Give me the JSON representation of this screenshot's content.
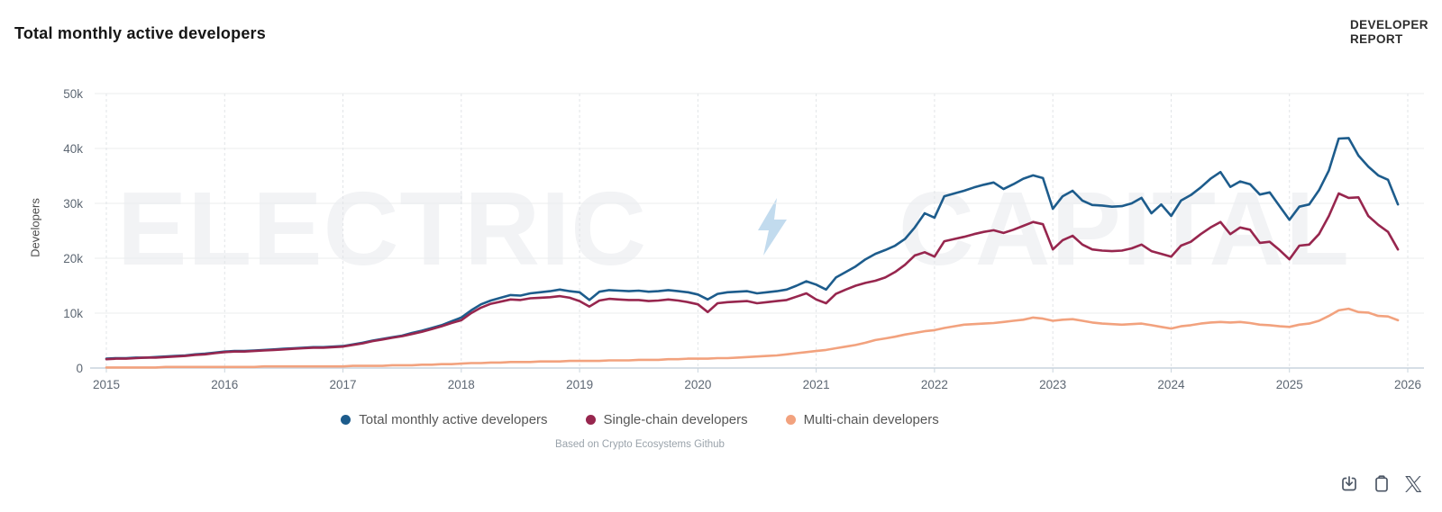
{
  "header": {
    "title": "Total monthly active developers",
    "brand_line1": "DEVELOPER",
    "brand_line2": "REPORT"
  },
  "watermark": {
    "left": "ELECTRIC",
    "right": "CAPITAL",
    "bolt_icon": "lightning-bolt-icon",
    "bolt_color": "#c2dbee"
  },
  "footer": {
    "caption": "Based on Crypto Ecosystems Github"
  },
  "toolbar": {
    "icons": [
      "download-icon",
      "copy-icon",
      "x-icon"
    ],
    "icon_color": "#4d5766"
  },
  "chart_data": {
    "type": "line",
    "title": "Total monthly active developers",
    "xlabel": "",
    "ylabel": "Developers",
    "x_start_year": 2015,
    "points_per_year": 12,
    "x_ticks": [
      2015,
      2016,
      2017,
      2018,
      2019,
      2020,
      2021,
      2022,
      2023,
      2024,
      2025,
      2026
    ],
    "y_ticks_k": [
      0,
      10,
      20,
      30,
      40,
      50
    ],
    "y_tick_labels": [
      "0",
      "10k",
      "20k",
      "30k",
      "40k",
      "50k"
    ],
    "y_max_k": 50,
    "ylim": [
      0,
      50000
    ],
    "unit": "developers (values in thousands)",
    "grid": "horizontal solid, vertical dashed per year",
    "legend_position": "bottom center",
    "series": [
      {
        "name": "Total monthly active developers",
        "color": "#1d5c8c",
        "values_k": [
          1.7,
          1.8,
          1.8,
          1.9,
          1.9,
          2.0,
          2.1,
          2.2,
          2.3,
          2.5,
          2.6,
          2.8,
          3.0,
          3.1,
          3.1,
          3.2,
          3.3,
          3.4,
          3.5,
          3.6,
          3.7,
          3.8,
          3.8,
          3.9,
          4.0,
          4.3,
          4.6,
          5.0,
          5.3,
          5.6,
          5.9,
          6.4,
          6.8,
          7.3,
          7.8,
          8.5,
          9.2,
          10.5,
          11.6,
          12.3,
          12.8,
          13.3,
          13.2,
          13.6,
          13.8,
          14.0,
          14.3,
          14.0,
          13.8,
          12.4,
          13.9,
          14.2,
          14.1,
          14.0,
          14.1,
          13.9,
          14.0,
          14.2,
          14.0,
          13.8,
          13.4,
          12.5,
          13.5,
          13.8,
          13.9,
          14.0,
          13.6,
          13.8,
          14.0,
          14.3,
          15.0,
          15.8,
          15.2,
          14.3,
          16.5,
          17.5,
          18.5,
          19.8,
          20.8,
          21.5,
          22.3,
          23.5,
          25.6,
          28.2,
          27.4,
          31.3,
          31.8,
          32.3,
          32.9,
          33.4,
          33.8,
          32.6,
          33.5,
          34.5,
          35.1,
          34.6,
          29.0,
          31.3,
          32.3,
          30.5,
          29.7,
          29.6,
          29.4,
          29.5,
          30.0,
          31.0,
          28.2,
          29.8,
          27.7,
          30.5,
          31.5,
          32.9,
          34.5,
          35.7,
          33.0,
          34.0,
          33.5,
          31.6,
          32.0,
          29.5,
          27.0,
          29.4,
          29.8,
          32.4,
          36.0,
          41.8,
          41.9,
          38.7,
          36.7,
          35.1,
          34.3,
          29.8
        ]
      },
      {
        "name": "Single-chain developers",
        "color": "#97264e",
        "values_k": [
          1.6,
          1.7,
          1.7,
          1.8,
          1.9,
          1.9,
          2.0,
          2.1,
          2.2,
          2.4,
          2.5,
          2.7,
          2.9,
          3.0,
          3.0,
          3.1,
          3.2,
          3.3,
          3.4,
          3.5,
          3.6,
          3.7,
          3.7,
          3.8,
          3.9,
          4.2,
          4.5,
          4.9,
          5.2,
          5.5,
          5.8,
          6.2,
          6.6,
          7.1,
          7.6,
          8.2,
          8.7,
          10.0,
          11.0,
          11.7,
          12.1,
          12.5,
          12.4,
          12.7,
          12.8,
          12.9,
          13.1,
          12.8,
          12.2,
          11.2,
          12.3,
          12.6,
          12.5,
          12.4,
          12.4,
          12.2,
          12.3,
          12.5,
          12.3,
          12.0,
          11.6,
          10.2,
          11.8,
          12.0,
          12.1,
          12.2,
          11.8,
          12.0,
          12.2,
          12.4,
          13.0,
          13.6,
          12.5,
          11.8,
          13.5,
          14.3,
          15.0,
          15.5,
          15.9,
          16.5,
          17.5,
          18.8,
          20.5,
          21.1,
          20.3,
          23.1,
          23.5,
          23.9,
          24.4,
          24.8,
          25.1,
          24.6,
          25.2,
          25.9,
          26.6,
          26.2,
          21.6,
          23.3,
          24.1,
          22.5,
          21.6,
          21.4,
          21.3,
          21.4,
          21.8,
          22.5,
          21.3,
          20.8,
          20.3,
          22.3,
          23.0,
          24.4,
          25.6,
          26.6,
          24.4,
          25.6,
          25.2,
          22.8,
          23.0,
          21.5,
          19.8,
          22.3,
          22.5,
          24.4,
          27.7,
          31.8,
          31.0,
          31.1,
          27.7,
          26.1,
          24.8,
          21.6
        ]
      },
      {
        "name": "Multi-chain developers",
        "color": "#f2a27e",
        "values_k": [
          0.1,
          0.1,
          0.1,
          0.1,
          0.1,
          0.1,
          0.2,
          0.2,
          0.2,
          0.2,
          0.2,
          0.2,
          0.2,
          0.2,
          0.2,
          0.2,
          0.3,
          0.3,
          0.3,
          0.3,
          0.3,
          0.3,
          0.3,
          0.3,
          0.3,
          0.4,
          0.4,
          0.4,
          0.4,
          0.5,
          0.5,
          0.5,
          0.6,
          0.6,
          0.7,
          0.7,
          0.8,
          0.9,
          0.9,
          1.0,
          1.0,
          1.1,
          1.1,
          1.1,
          1.2,
          1.2,
          1.2,
          1.3,
          1.3,
          1.3,
          1.3,
          1.4,
          1.4,
          1.4,
          1.5,
          1.5,
          1.5,
          1.6,
          1.6,
          1.7,
          1.7,
          1.7,
          1.8,
          1.8,
          1.9,
          2.0,
          2.1,
          2.2,
          2.3,
          2.5,
          2.7,
          2.9,
          3.1,
          3.3,
          3.6,
          3.9,
          4.2,
          4.6,
          5.1,
          5.4,
          5.7,
          6.1,
          6.4,
          6.7,
          6.9,
          7.3,
          7.6,
          7.9,
          8.0,
          8.1,
          8.2,
          8.4,
          8.6,
          8.8,
          9.2,
          9.0,
          8.6,
          8.8,
          8.9,
          8.6,
          8.3,
          8.1,
          8.0,
          7.9,
          8.0,
          8.1,
          7.8,
          7.5,
          7.2,
          7.6,
          7.8,
          8.1,
          8.3,
          8.4,
          8.3,
          8.4,
          8.2,
          7.9,
          7.8,
          7.6,
          7.5,
          7.9,
          8.1,
          8.6,
          9.5,
          10.5,
          10.8,
          10.2,
          10.1,
          9.5,
          9.4,
          8.7
        ]
      }
    ]
  }
}
